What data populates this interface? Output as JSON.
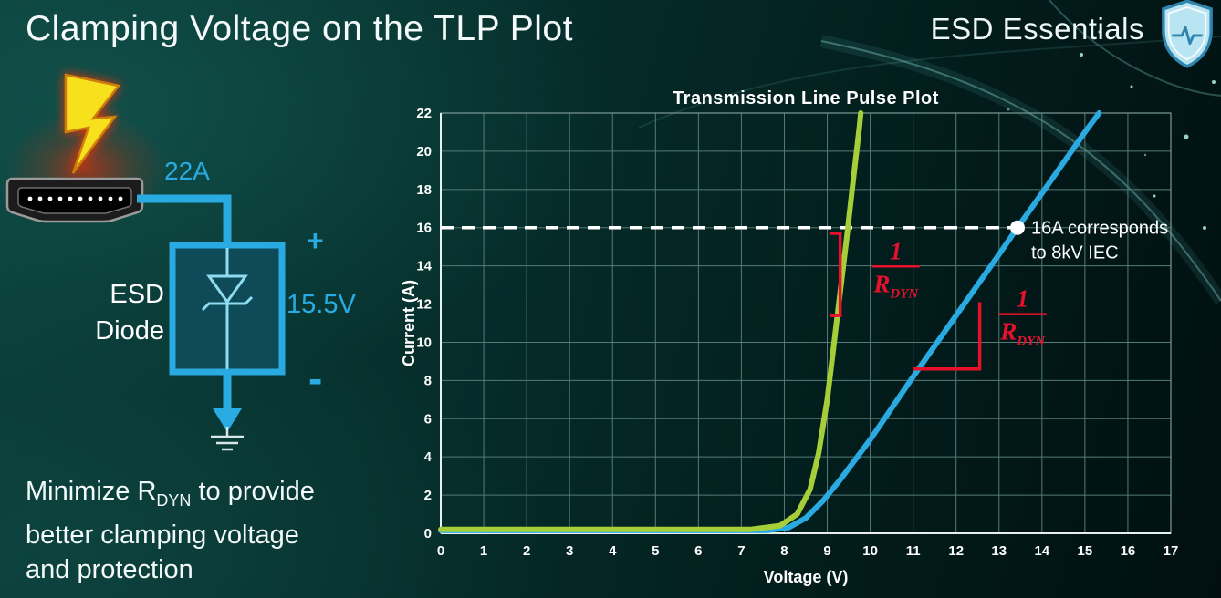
{
  "slide": {
    "title": "Clamping Voltage on the TLP Plot",
    "brand": "ESD Essentials"
  },
  "schematic": {
    "surge_current": "22A",
    "device_line1": "ESD",
    "device_line2": "Diode",
    "polarity_plus": "+",
    "clamp_voltage": "15.5V",
    "polarity_minus": "-"
  },
  "note": {
    "line1_prefix": "Minimize R",
    "line1_subscript": "DYN",
    "line1_suffix": " to provide",
    "line2": "better clamping voltage",
    "line3": "and protection"
  },
  "chart_data": {
    "type": "line",
    "title": "Transmission Line Pulse Plot",
    "xlabel": "Voltage (V)",
    "ylabel": "Current (A)",
    "xlim": [
      0,
      17
    ],
    "ylim": [
      0,
      22
    ],
    "x_ticks": [
      0,
      1,
      2,
      3,
      4,
      5,
      6,
      7,
      8,
      9,
      10,
      11,
      12,
      13,
      14,
      15,
      16,
      17
    ],
    "y_ticks": [
      0,
      2,
      4,
      6,
      8,
      10,
      12,
      14,
      16,
      18,
      20,
      22
    ],
    "grid": true,
    "grid_color": "#567b77",
    "series": [
      {
        "name": "blue-curve-high-rdyn",
        "color": "#29abe2",
        "points": [
          [
            0,
            0.15
          ],
          [
            7.6,
            0.15
          ],
          [
            8.1,
            0.3
          ],
          [
            8.5,
            0.8
          ],
          [
            8.9,
            1.7
          ],
          [
            9.3,
            2.8
          ],
          [
            10,
            4.9
          ],
          [
            11,
            8.2
          ],
          [
            12,
            11.4
          ],
          [
            13,
            14.6
          ],
          [
            13.43,
            16
          ],
          [
            14,
            17.8
          ],
          [
            15,
            21.0
          ],
          [
            15.33,
            22
          ]
        ]
      },
      {
        "name": "green-curve-low-rdyn",
        "color": "#a6ce39",
        "points": [
          [
            0,
            0.2
          ],
          [
            7.2,
            0.2
          ],
          [
            7.9,
            0.4
          ],
          [
            8.3,
            1.0
          ],
          [
            8.6,
            2.3
          ],
          [
            8.8,
            4.2
          ],
          [
            9.0,
            7.0
          ],
          [
            9.15,
            9.8
          ],
          [
            9.3,
            12.6
          ],
          [
            9.45,
            15.4
          ],
          [
            9.6,
            18.4
          ],
          [
            9.75,
            21.3
          ],
          [
            9.78,
            22
          ]
        ]
      }
    ],
    "reference_line": {
      "y": 16,
      "style": "dashed",
      "color": "#ffffff"
    },
    "marker": {
      "x": 13.43,
      "y": 16,
      "color": "#ffffff",
      "label_lines": [
        "16A corresponds",
        "to 8kV IEC"
      ]
    },
    "slope_annotations": [
      {
        "color": "#e8112d",
        "bracket": [
          [
            9.05,
            15.7
          ],
          [
            9.3,
            15.7
          ],
          [
            9.3,
            11.4
          ],
          [
            9.05,
            11.4
          ]
        ],
        "label_pos": [
          10.6,
          15.4
        ],
        "fraction": {
          "numerator": "1",
          "denominator_base": "R",
          "denominator_subscript": "DYN"
        }
      },
      {
        "color": "#e8112d",
        "bracket": [
          [
            11.0,
            8.6
          ],
          [
            12.55,
            8.6
          ],
          [
            12.55,
            12.1
          ]
        ],
        "label_pos": [
          13.55,
          12.9
        ],
        "fraction": {
          "numerator": "1",
          "denominator_base": "R",
          "denominator_subscript": "DYN"
        }
      }
    ]
  }
}
